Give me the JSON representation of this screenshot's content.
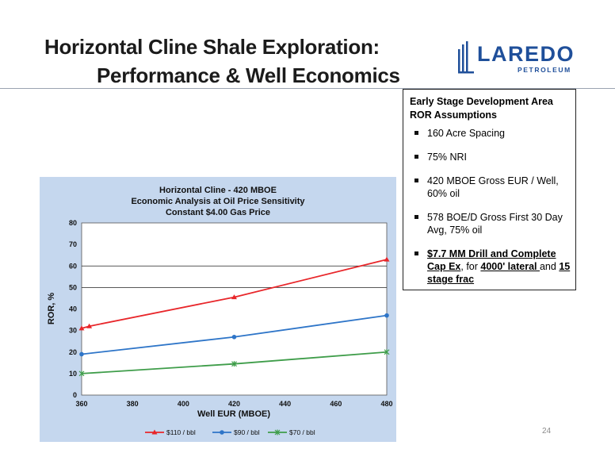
{
  "slide": {
    "title_line1": "Horizontal Cline Shale Exploration:",
    "title_line2": "Performance & Well Economics",
    "page_number": "24"
  },
  "logo": {
    "word": "LAREDO",
    "sub": "PETROLEUM",
    "color": "#1f4f9a"
  },
  "assumptions": {
    "heading_line1": "Early Stage Development Area",
    "heading_line2": "ROR Assumptions",
    "bullets": [
      {
        "text": "160 Acre Spacing"
      },
      {
        "text": "75% NRI"
      },
      {
        "text": "420 MBOE Gross EUR / Well, 60% oil"
      },
      {
        "text": "578 BOE/D Gross First 30 Day Avg, 75% oil"
      }
    ],
    "last_bullet": {
      "part1": "$7.7 MM Drill and Complete Cap Ex",
      "part2": ", for ",
      "part3": "4000' lateral ",
      "part4": "and ",
      "part5": "15 stage frac"
    }
  },
  "chart_data": {
    "type": "line",
    "title_lines": [
      "Horizontal Cline - 420 MBOE",
      "Economic Analysis at Oil Price Sensitivity",
      "Constant $4.00 Gas Price"
    ],
    "xlabel": "Well EUR (MBOE)",
    "ylabel": "ROR, %",
    "xlim": [
      360,
      480
    ],
    "ylim": [
      0,
      80
    ],
    "xticks": [
      360,
      380,
      400,
      420,
      440,
      460,
      480
    ],
    "yticks": [
      0,
      10,
      20,
      30,
      40,
      50,
      60,
      70,
      80
    ],
    "gridlines_y": [
      50,
      60
    ],
    "legend_position": "bottom",
    "series": [
      {
        "name": "$110 / bbl",
        "color": "#e8262a",
        "marker": "triangle",
        "x": [
          360,
          363,
          420,
          480
        ],
        "y": [
          31,
          32,
          45.5,
          63
        ]
      },
      {
        "name": "$90 / bbl",
        "color": "#2e75c8",
        "marker": "circle",
        "x": [
          360,
          420,
          480
        ],
        "y": [
          19,
          27,
          37
        ]
      },
      {
        "name": "$70 / bbl",
        "color": "#3f9d4a",
        "marker": "star",
        "x": [
          360,
          420,
          480
        ],
        "y": [
          10,
          14.5,
          20
        ]
      }
    ]
  }
}
